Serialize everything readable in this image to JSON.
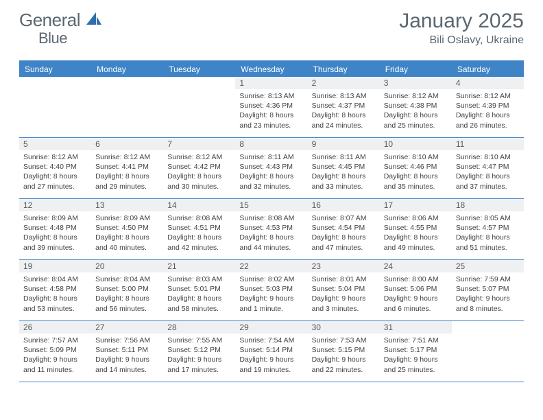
{
  "brand": {
    "name_part1": "General",
    "name_part2": "Blue"
  },
  "title": "January 2025",
  "location": "Bili Oslavy, Ukraine",
  "colors": {
    "header_bg": "#3e84c6",
    "header_text": "#ffffff",
    "daynum_bg": "#eef0f2",
    "text": "#424242",
    "rule": "#3e84c6",
    "title_text": "#5b6770"
  },
  "day_names": [
    "Sunday",
    "Monday",
    "Tuesday",
    "Wednesday",
    "Thursday",
    "Friday",
    "Saturday"
  ],
  "weeks": [
    [
      null,
      null,
      null,
      {
        "n": "1",
        "sr": "8:13 AM",
        "ss": "4:36 PM",
        "dl": "8 hours and 23 minutes."
      },
      {
        "n": "2",
        "sr": "8:13 AM",
        "ss": "4:37 PM",
        "dl": "8 hours and 24 minutes."
      },
      {
        "n": "3",
        "sr": "8:12 AM",
        "ss": "4:38 PM",
        "dl": "8 hours and 25 minutes."
      },
      {
        "n": "4",
        "sr": "8:12 AM",
        "ss": "4:39 PM",
        "dl": "8 hours and 26 minutes."
      }
    ],
    [
      {
        "n": "5",
        "sr": "8:12 AM",
        "ss": "4:40 PM",
        "dl": "8 hours and 27 minutes."
      },
      {
        "n": "6",
        "sr": "8:12 AM",
        "ss": "4:41 PM",
        "dl": "8 hours and 29 minutes."
      },
      {
        "n": "7",
        "sr": "8:12 AM",
        "ss": "4:42 PM",
        "dl": "8 hours and 30 minutes."
      },
      {
        "n": "8",
        "sr": "8:11 AM",
        "ss": "4:43 PM",
        "dl": "8 hours and 32 minutes."
      },
      {
        "n": "9",
        "sr": "8:11 AM",
        "ss": "4:45 PM",
        "dl": "8 hours and 33 minutes."
      },
      {
        "n": "10",
        "sr": "8:10 AM",
        "ss": "4:46 PM",
        "dl": "8 hours and 35 minutes."
      },
      {
        "n": "11",
        "sr": "8:10 AM",
        "ss": "4:47 PM",
        "dl": "8 hours and 37 minutes."
      }
    ],
    [
      {
        "n": "12",
        "sr": "8:09 AM",
        "ss": "4:48 PM",
        "dl": "8 hours and 39 minutes."
      },
      {
        "n": "13",
        "sr": "8:09 AM",
        "ss": "4:50 PM",
        "dl": "8 hours and 40 minutes."
      },
      {
        "n": "14",
        "sr": "8:08 AM",
        "ss": "4:51 PM",
        "dl": "8 hours and 42 minutes."
      },
      {
        "n": "15",
        "sr": "8:08 AM",
        "ss": "4:53 PM",
        "dl": "8 hours and 44 minutes."
      },
      {
        "n": "16",
        "sr": "8:07 AM",
        "ss": "4:54 PM",
        "dl": "8 hours and 47 minutes."
      },
      {
        "n": "17",
        "sr": "8:06 AM",
        "ss": "4:55 PM",
        "dl": "8 hours and 49 minutes."
      },
      {
        "n": "18",
        "sr": "8:05 AM",
        "ss": "4:57 PM",
        "dl": "8 hours and 51 minutes."
      }
    ],
    [
      {
        "n": "19",
        "sr": "8:04 AM",
        "ss": "4:58 PM",
        "dl": "8 hours and 53 minutes."
      },
      {
        "n": "20",
        "sr": "8:04 AM",
        "ss": "5:00 PM",
        "dl": "8 hours and 56 minutes."
      },
      {
        "n": "21",
        "sr": "8:03 AM",
        "ss": "5:01 PM",
        "dl": "8 hours and 58 minutes."
      },
      {
        "n": "22",
        "sr": "8:02 AM",
        "ss": "5:03 PM",
        "dl": "9 hours and 1 minute."
      },
      {
        "n": "23",
        "sr": "8:01 AM",
        "ss": "5:04 PM",
        "dl": "9 hours and 3 minutes."
      },
      {
        "n": "24",
        "sr": "8:00 AM",
        "ss": "5:06 PM",
        "dl": "9 hours and 6 minutes."
      },
      {
        "n": "25",
        "sr": "7:59 AM",
        "ss": "5:07 PM",
        "dl": "9 hours and 8 minutes."
      }
    ],
    [
      {
        "n": "26",
        "sr": "7:57 AM",
        "ss": "5:09 PM",
        "dl": "9 hours and 11 minutes."
      },
      {
        "n": "27",
        "sr": "7:56 AM",
        "ss": "5:11 PM",
        "dl": "9 hours and 14 minutes."
      },
      {
        "n": "28",
        "sr": "7:55 AM",
        "ss": "5:12 PM",
        "dl": "9 hours and 17 minutes."
      },
      {
        "n": "29",
        "sr": "7:54 AM",
        "ss": "5:14 PM",
        "dl": "9 hours and 19 minutes."
      },
      {
        "n": "30",
        "sr": "7:53 AM",
        "ss": "5:15 PM",
        "dl": "9 hours and 22 minutes."
      },
      {
        "n": "31",
        "sr": "7:51 AM",
        "ss": "5:17 PM",
        "dl": "9 hours and 25 minutes."
      },
      null
    ]
  ],
  "labels": {
    "sunrise": "Sunrise:",
    "sunset": "Sunset:",
    "daylight": "Daylight:"
  }
}
